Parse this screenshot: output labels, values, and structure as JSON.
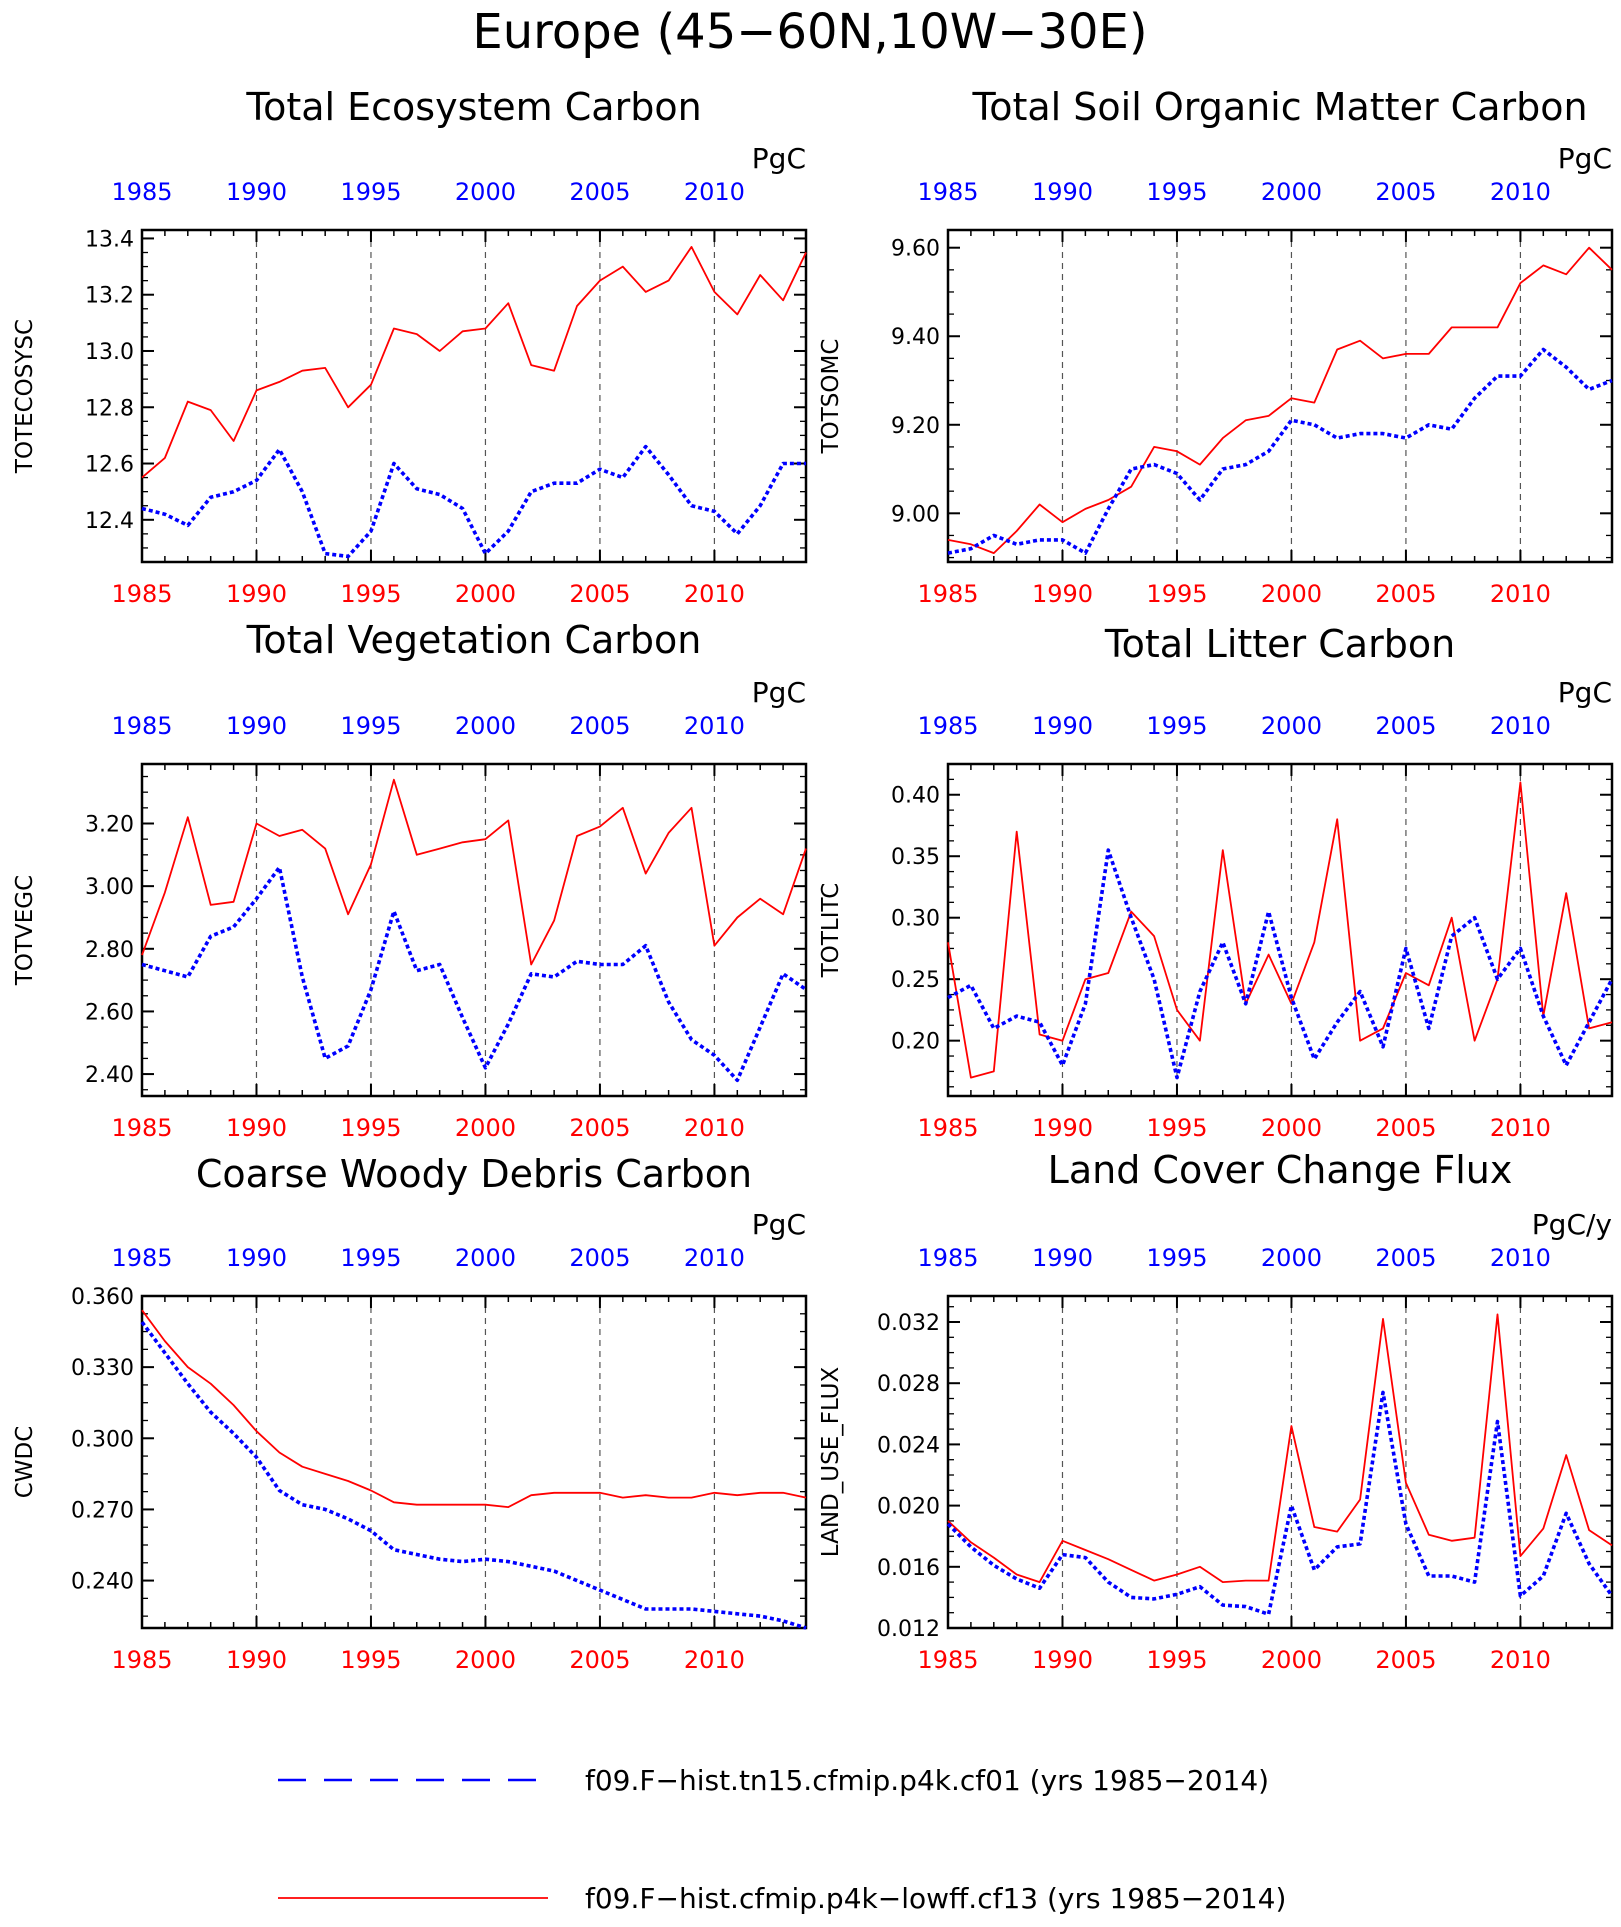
{
  "figure_title": "Europe (45−60N,10W−30E)",
  "colors": {
    "red": "#ff0000",
    "blue": "#0000ff",
    "axis": "#000000",
    "grid": "#555555"
  },
  "legend": {
    "items": [
      {
        "label": "f09.F−hist.tn15.cfmip.p4k.cf01 (yrs 1985−2014)",
        "color": "#0000ff",
        "style": "dashed"
      },
      {
        "label": "f09.F−hist.cfmip.p4k−lowff.cf13 (yrs 1985−2014)",
        "color": "#ff0000",
        "style": "solid"
      }
    ]
  },
  "chart_data": [
    {
      "type": "line",
      "title": "Total Ecosystem Carbon",
      "ylabel": "TOTECOSYSC",
      "units": "PgC",
      "x": [
        1985,
        1986,
        1987,
        1988,
        1989,
        1990,
        1991,
        1992,
        1993,
        1994,
        1995,
        1996,
        1997,
        1998,
        1999,
        2000,
        2001,
        2002,
        2003,
        2004,
        2005,
        2006,
        2007,
        2008,
        2009,
        2010,
        2011,
        2012,
        2013,
        2014
      ],
      "xlim": [
        1985,
        2014
      ],
      "ylim": [
        12.25,
        13.43
      ],
      "yticks": [
        12.4,
        12.6,
        12.8,
        13.0,
        13.2,
        13.4
      ],
      "ytick_labels": [
        "12.4",
        "12.6",
        "12.8",
        "13.0",
        "13.2",
        "13.4"
      ],
      "xticks": [
        1985,
        1990,
        1995,
        2000,
        2005,
        2010
      ],
      "xtick_labels": [
        "1985",
        "1990",
        "1995",
        "2000",
        "2005",
        "2010"
      ],
      "grid_x": [
        1990,
        1995,
        2000,
        2005,
        2010
      ],
      "series": [
        {
          "color": "#ff0000",
          "style": "solid",
          "values": [
            12.55,
            12.62,
            12.82,
            12.79,
            12.68,
            12.86,
            12.89,
            12.93,
            12.94,
            12.8,
            12.88,
            13.08,
            13.06,
            13.0,
            13.07,
            13.08,
            13.17,
            12.95,
            12.93,
            13.16,
            13.25,
            13.3,
            13.21,
            13.25,
            13.37,
            13.21,
            13.13,
            13.27,
            13.18,
            13.35
          ]
        },
        {
          "color": "#0000ff",
          "style": "dashed",
          "values": [
            12.44,
            12.42,
            12.38,
            12.48,
            12.5,
            12.54,
            12.65,
            12.5,
            12.28,
            12.27,
            12.36,
            12.6,
            12.51,
            12.49,
            12.44,
            12.28,
            12.36,
            12.5,
            12.53,
            12.53,
            12.58,
            12.55,
            12.66,
            12.56,
            12.45,
            12.43,
            12.35,
            12.45,
            12.6,
            12.6
          ]
        }
      ]
    },
    {
      "type": "line",
      "title": "Total Soil Organic Matter Carbon",
      "ylabel": "TOTSOMC",
      "units": "PgC",
      "x": [
        1985,
        1986,
        1987,
        1988,
        1989,
        1990,
        1991,
        1992,
        1993,
        1994,
        1995,
        1996,
        1997,
        1998,
        1999,
        2000,
        2001,
        2002,
        2003,
        2004,
        2005,
        2006,
        2007,
        2008,
        2009,
        2010,
        2011,
        2012,
        2013,
        2014
      ],
      "xlim": [
        1985,
        2014
      ],
      "ylim": [
        8.89,
        9.64
      ],
      "yticks": [
        9.0,
        9.2,
        9.4,
        9.6
      ],
      "ytick_labels": [
        "9.00",
        "9.20",
        "9.40",
        "9.60"
      ],
      "xticks": [
        1985,
        1990,
        1995,
        2000,
        2005,
        2010
      ],
      "xtick_labels": [
        "1985",
        "1990",
        "1995",
        "2000",
        "2005",
        "2010"
      ],
      "grid_x": [
        1990,
        1995,
        2000,
        2005,
        2010
      ],
      "series": [
        {
          "color": "#ff0000",
          "style": "solid",
          "values": [
            8.94,
            8.93,
            8.91,
            8.96,
            9.02,
            8.98,
            9.01,
            9.03,
            9.06,
            9.15,
            9.14,
            9.11,
            9.17,
            9.21,
            9.22,
            9.26,
            9.25,
            9.37,
            9.39,
            9.35,
            9.36,
            9.36,
            9.42,
            9.42,
            9.42,
            9.52,
            9.56,
            9.54,
            9.6,
            9.55
          ]
        },
        {
          "color": "#0000ff",
          "style": "dashed",
          "values": [
            8.91,
            8.92,
            8.95,
            8.93,
            8.94,
            8.94,
            8.91,
            9.01,
            9.1,
            9.11,
            9.09,
            9.03,
            9.1,
            9.11,
            9.14,
            9.21,
            9.2,
            9.17,
            9.18,
            9.18,
            9.17,
            9.2,
            9.19,
            9.26,
            9.31,
            9.31,
            9.37,
            9.33,
            9.28,
            9.3
          ]
        }
      ]
    },
    {
      "type": "line",
      "title": "Total Vegetation Carbon",
      "ylabel": "TOTVEGC",
      "units": "PgC",
      "x": [
        1985,
        1986,
        1987,
        1988,
        1989,
        1990,
        1991,
        1992,
        1993,
        1994,
        1995,
        1996,
        1997,
        1998,
        1999,
        2000,
        2001,
        2002,
        2003,
        2004,
        2005,
        2006,
        2007,
        2008,
        2009,
        2010,
        2011,
        2012,
        2013,
        2014
      ],
      "xlim": [
        1985,
        2014
      ],
      "ylim": [
        2.33,
        3.39
      ],
      "yticks": [
        2.4,
        2.6,
        2.8,
        3.0,
        3.2
      ],
      "ytick_labels": [
        "2.40",
        "2.60",
        "2.80",
        "3.00",
        "3.20"
      ],
      "xticks": [
        1985,
        1990,
        1995,
        2000,
        2005,
        2010
      ],
      "xtick_labels": [
        "1985",
        "1990",
        "1995",
        "2000",
        "2005",
        "2010"
      ],
      "grid_x": [
        1990,
        1995,
        2000,
        2005,
        2010
      ],
      "series": [
        {
          "color": "#ff0000",
          "style": "solid",
          "values": [
            2.78,
            2.98,
            3.22,
            2.94,
            2.95,
            3.2,
            3.16,
            3.18,
            3.12,
            2.91,
            3.07,
            3.34,
            3.1,
            3.12,
            3.14,
            3.15,
            3.21,
            2.75,
            2.89,
            3.16,
            3.19,
            3.25,
            3.04,
            3.17,
            3.25,
            2.81,
            2.9,
            2.96,
            2.91,
            3.12
          ]
        },
        {
          "color": "#0000ff",
          "style": "dashed",
          "values": [
            2.75,
            2.73,
            2.71,
            2.84,
            2.87,
            2.96,
            3.06,
            2.71,
            2.45,
            2.49,
            2.67,
            2.92,
            2.73,
            2.75,
            2.58,
            2.42,
            2.56,
            2.72,
            2.71,
            2.76,
            2.75,
            2.75,
            2.81,
            2.63,
            2.51,
            2.46,
            2.38,
            2.55,
            2.72,
            2.67
          ]
        }
      ]
    },
    {
      "type": "line",
      "title": "Total Litter Carbon",
      "ylabel": "TOTLITC",
      "units": "PgC",
      "x": [
        1985,
        1986,
        1987,
        1988,
        1989,
        1990,
        1991,
        1992,
        1993,
        1994,
        1995,
        1996,
        1997,
        1998,
        1999,
        2000,
        2001,
        2002,
        2003,
        2004,
        2005,
        2006,
        2007,
        2008,
        2009,
        2010,
        2011,
        2012,
        2013,
        2014
      ],
      "xlim": [
        1985,
        2014
      ],
      "ylim": [
        0.155,
        0.425
      ],
      "yticks": [
        0.2,
        0.25,
        0.3,
        0.35,
        0.4
      ],
      "ytick_labels": [
        "0.20",
        "0.25",
        "0.30",
        "0.35",
        "0.40"
      ],
      "xticks": [
        1985,
        1990,
        1995,
        2000,
        2005,
        2010
      ],
      "xtick_labels": [
        "1985",
        "1990",
        "1995",
        "2000",
        "2005",
        "2010"
      ],
      "grid_x": [
        1990,
        1995,
        2000,
        2005,
        2010
      ],
      "series": [
        {
          "color": "#ff0000",
          "style": "solid",
          "values": [
            0.28,
            0.17,
            0.175,
            0.37,
            0.205,
            0.2,
            0.25,
            0.255,
            0.305,
            0.285,
            0.225,
            0.2,
            0.355,
            0.23,
            0.27,
            0.23,
            0.28,
            0.38,
            0.2,
            0.21,
            0.255,
            0.245,
            0.3,
            0.2,
            0.25,
            0.41,
            0.22,
            0.32,
            0.21,
            0.215
          ]
        },
        {
          "color": "#0000ff",
          "style": "dashed",
          "values": [
            0.235,
            0.245,
            0.21,
            0.22,
            0.215,
            0.18,
            0.23,
            0.355,
            0.3,
            0.25,
            0.17,
            0.24,
            0.28,
            0.23,
            0.305,
            0.235,
            0.185,
            0.215,
            0.24,
            0.195,
            0.275,
            0.21,
            0.285,
            0.3,
            0.25,
            0.275,
            0.22,
            0.18,
            0.215,
            0.25
          ]
        }
      ]
    },
    {
      "type": "line",
      "title": "Coarse Woody Debris Carbon",
      "ylabel": "CWDC",
      "units": "PgC",
      "x": [
        1985,
        1986,
        1987,
        1988,
        1989,
        1990,
        1991,
        1992,
        1993,
        1994,
        1995,
        1996,
        1997,
        1998,
        1999,
        2000,
        2001,
        2002,
        2003,
        2004,
        2005,
        2006,
        2007,
        2008,
        2009,
        2010,
        2011,
        2012,
        2013,
        2014
      ],
      "xlim": [
        1985,
        2014
      ],
      "ylim": [
        0.22,
        0.36
      ],
      "yticks": [
        0.24,
        0.27,
        0.3,
        0.33,
        0.36
      ],
      "ytick_labels": [
        "0.240",
        "0.270",
        "0.300",
        "0.330",
        "0.360"
      ],
      "xticks": [
        1985,
        1990,
        1995,
        2000,
        2005,
        2010
      ],
      "xtick_labels": [
        "1985",
        "1990",
        "1995",
        "2000",
        "2005",
        "2010"
      ],
      "grid_x": [
        1990,
        1995,
        2000,
        2005,
        2010
      ],
      "series": [
        {
          "color": "#ff0000",
          "style": "solid",
          "values": [
            0.354,
            0.341,
            0.33,
            0.323,
            0.314,
            0.303,
            0.294,
            0.288,
            0.285,
            0.282,
            0.278,
            0.273,
            0.272,
            0.272,
            0.272,
            0.272,
            0.271,
            0.276,
            0.277,
            0.277,
            0.277,
            0.275,
            0.276,
            0.275,
            0.275,
            0.277,
            0.276,
            0.277,
            0.277,
            0.275
          ]
        },
        {
          "color": "#0000ff",
          "style": "dashed",
          "values": [
            0.349,
            0.336,
            0.323,
            0.311,
            0.302,
            0.292,
            0.278,
            0.272,
            0.27,
            0.266,
            0.261,
            0.253,
            0.251,
            0.249,
            0.248,
            0.249,
            0.248,
            0.246,
            0.244,
            0.24,
            0.236,
            0.232,
            0.228,
            0.228,
            0.228,
            0.227,
            0.226,
            0.225,
            0.223,
            0.22
          ]
        }
      ]
    },
    {
      "type": "line",
      "title": "Land Cover Change Flux",
      "ylabel": "LAND_USE_FLUX",
      "units": "PgC/y",
      "x": [
        1985,
        1986,
        1987,
        1988,
        1989,
        1990,
        1991,
        1992,
        1993,
        1994,
        1995,
        1996,
        1997,
        1998,
        1999,
        2000,
        2001,
        2002,
        2003,
        2004,
        2005,
        2006,
        2007,
        2008,
        2009,
        2010,
        2011,
        2012,
        2013,
        2014
      ],
      "xlim": [
        1985,
        2014
      ],
      "ylim": [
        0.012,
        0.0337
      ],
      "yticks": [
        0.012,
        0.016,
        0.02,
        0.024,
        0.028,
        0.032
      ],
      "ytick_labels": [
        "0.012",
        "0.016",
        "0.020",
        "0.024",
        "0.028",
        "0.032"
      ],
      "xticks": [
        1985,
        1990,
        1995,
        2000,
        2005,
        2010
      ],
      "xtick_labels": [
        "1985",
        "1990",
        "1995",
        "2000",
        "2005",
        "2010"
      ],
      "grid_x": [
        1990,
        1995,
        2000,
        2005,
        2010
      ],
      "series": [
        {
          "color": "#ff0000",
          "style": "solid",
          "values": [
            0.019,
            0.0176,
            0.0166,
            0.0155,
            0.015,
            0.0177,
            0.0171,
            0.0165,
            0.0158,
            0.0151,
            0.0155,
            0.016,
            0.015,
            0.0151,
            0.0151,
            0.0252,
            0.0186,
            0.0183,
            0.0204,
            0.0322,
            0.0215,
            0.0181,
            0.0177,
            0.0179,
            0.0325,
            0.0167,
            0.0185,
            0.0233,
            0.0184,
            0.0174
          ]
        },
        {
          "color": "#0000ff",
          "style": "dashed",
          "values": [
            0.0188,
            0.0173,
            0.0161,
            0.0152,
            0.0146,
            0.0168,
            0.0166,
            0.015,
            0.014,
            0.0139,
            0.0142,
            0.0147,
            0.0135,
            0.0134,
            0.0129,
            0.02,
            0.0158,
            0.0173,
            0.0175,
            0.0274,
            0.0188,
            0.0154,
            0.0154,
            0.015,
            0.0255,
            0.0141,
            0.0154,
            0.0195,
            0.0162,
            0.0141
          ]
        }
      ]
    }
  ]
}
